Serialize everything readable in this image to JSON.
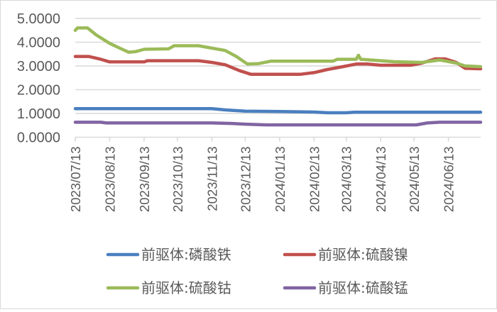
{
  "chart_data": {
    "type": "line",
    "title": "",
    "xlabel": "",
    "ylabel": "",
    "ylim": [
      0,
      5
    ],
    "y_ticks": [
      "0.0000",
      "1.0000",
      "2.0000",
      "3.0000",
      "4.0000",
      "5.0000"
    ],
    "y_tick_values": [
      0,
      1,
      2,
      3,
      4,
      5
    ],
    "grid": true,
    "legend_position": "bottom",
    "x_range": [
      "2023/07/13",
      "2024/07/12"
    ],
    "x_tick_labels": [
      "2023/07/13",
      "2023/08/13",
      "2023/09/13",
      "2023/10/13",
      "2023/11/13",
      "2023/12/13",
      "2024/01/13",
      "2024/02/13",
      "2024/03/13",
      "2024/04/13",
      "2024/05/13",
      "2024/06/13"
    ],
    "series": [
      {
        "name": "前驱体:磷酸铁",
        "color": "#4a7fbf",
        "points": [
          [
            "2023/07/13",
            1.2
          ],
          [
            "2023/08/13",
            1.2
          ],
          [
            "2023/09/13",
            1.2
          ],
          [
            "2023/10/13",
            1.2
          ],
          [
            "2023/11/13",
            1.2
          ],
          [
            "2023/11/25",
            1.15
          ],
          [
            "2023/12/13",
            1.1
          ],
          [
            "2024/01/13",
            1.08
          ],
          [
            "2024/02/13",
            1.06
          ],
          [
            "2024/02/25",
            1.03
          ],
          [
            "2024/03/13",
            1.03
          ],
          [
            "2024/03/20",
            1.05
          ],
          [
            "2024/04/13",
            1.05
          ],
          [
            "2024/05/13",
            1.05
          ],
          [
            "2024/06/13",
            1.05
          ],
          [
            "2024/07/12",
            1.05
          ]
        ]
      },
      {
        "name": "前驱体:硫酸镍",
        "color": "#c0504d",
        "points": [
          [
            "2023/07/13",
            3.4
          ],
          [
            "2023/07/25",
            3.4
          ],
          [
            "2023/08/05",
            3.28
          ],
          [
            "2023/08/13",
            3.17
          ],
          [
            "2023/09/13",
            3.17
          ],
          [
            "2023/09/16",
            3.22
          ],
          [
            "2023/10/13",
            3.22
          ],
          [
            "2023/11/01",
            3.22
          ],
          [
            "2023/11/13",
            3.15
          ],
          [
            "2023/11/25",
            3.05
          ],
          [
            "2023/12/08",
            2.8
          ],
          [
            "2023/12/18",
            2.65
          ],
          [
            "2024/01/13",
            2.65
          ],
          [
            "2024/02/01",
            2.65
          ],
          [
            "2024/02/13",
            2.72
          ],
          [
            "2024/02/25",
            2.85
          ],
          [
            "2024/03/10",
            2.97
          ],
          [
            "2024/03/22",
            3.08
          ],
          [
            "2024/04/01",
            3.08
          ],
          [
            "2024/04/13",
            3.03
          ],
          [
            "2024/05/10",
            3.03
          ],
          [
            "2024/05/20",
            3.12
          ],
          [
            "2024/06/01",
            3.3
          ],
          [
            "2024/06/10",
            3.3
          ],
          [
            "2024/06/20",
            3.15
          ],
          [
            "2024/06/28",
            2.9
          ],
          [
            "2024/07/12",
            2.88
          ]
        ]
      },
      {
        "name": "前驱体:硫酸钴",
        "color": "#9bbb59",
        "points": [
          [
            "2023/07/13",
            4.5
          ],
          [
            "2023/07/15",
            4.6
          ],
          [
            "2023/07/24",
            4.6
          ],
          [
            "2023/08/01",
            4.3
          ],
          [
            "2023/08/13",
            3.95
          ],
          [
            "2023/08/22",
            3.75
          ],
          [
            "2023/08/30",
            3.58
          ],
          [
            "2023/09/05",
            3.6
          ],
          [
            "2023/09/13",
            3.7
          ],
          [
            "2023/10/05",
            3.72
          ],
          [
            "2023/10/10",
            3.85
          ],
          [
            "2023/11/01",
            3.85
          ],
          [
            "2023/11/13",
            3.75
          ],
          [
            "2023/11/25",
            3.65
          ],
          [
            "2023/12/05",
            3.4
          ],
          [
            "2023/12/15",
            3.08
          ],
          [
            "2023/12/25",
            3.1
          ],
          [
            "2024/01/05",
            3.2
          ],
          [
            "2024/02/13",
            3.2
          ],
          [
            "2024/03/01",
            3.2
          ],
          [
            "2024/03/05",
            3.28
          ],
          [
            "2024/03/22",
            3.28
          ],
          [
            "2024/03/24",
            3.45
          ],
          [
            "2024/03/26",
            3.28
          ],
          [
            "2024/04/13",
            3.22
          ],
          [
            "2024/04/25",
            3.18
          ],
          [
            "2024/05/20",
            3.15
          ],
          [
            "2024/06/05",
            3.25
          ],
          [
            "2024/06/20",
            3.12
          ],
          [
            "2024/06/28",
            3.0
          ],
          [
            "2024/07/12",
            2.97
          ]
        ]
      },
      {
        "name": "前驱体:硫酸锰",
        "color": "#8064a2",
        "points": [
          [
            "2023/07/13",
            0.63
          ],
          [
            "2023/08/05",
            0.63
          ],
          [
            "2023/08/10",
            0.6
          ],
          [
            "2023/09/13",
            0.6
          ],
          [
            "2023/10/13",
            0.6
          ],
          [
            "2023/11/13",
            0.6
          ],
          [
            "2023/12/01",
            0.58
          ],
          [
            "2023/12/13",
            0.55
          ],
          [
            "2024/01/01",
            0.52
          ],
          [
            "2024/02/13",
            0.52
          ],
          [
            "2024/03/13",
            0.52
          ],
          [
            "2024/04/13",
            0.52
          ],
          [
            "2024/05/15",
            0.52
          ],
          [
            "2024/05/25",
            0.6
          ],
          [
            "2024/06/05",
            0.63
          ],
          [
            "2024/07/12",
            0.63
          ]
        ]
      }
    ]
  }
}
